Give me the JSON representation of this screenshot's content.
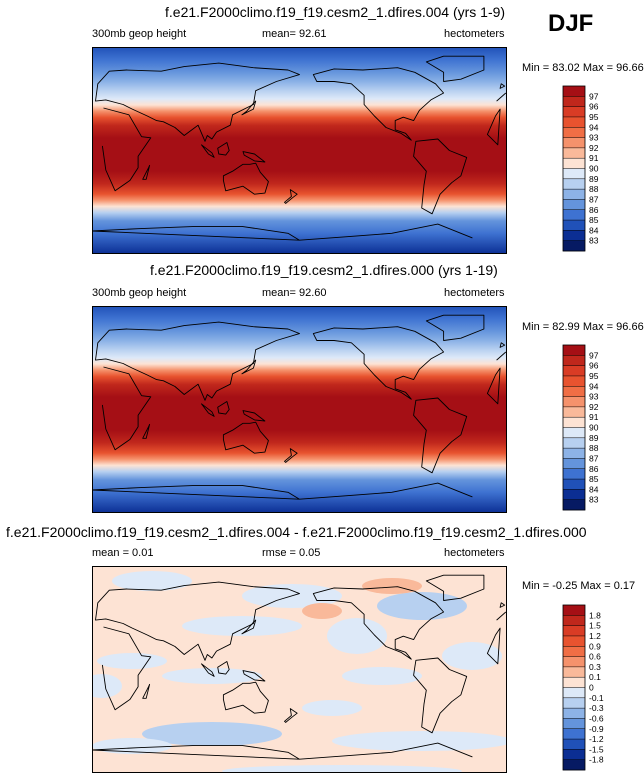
{
  "season": "DJF",
  "panels": [
    {
      "title": "f.e21.F2000climo.f19_f19.cesm2_1.dfires.004 (yrs 1-9)",
      "variable": "300mb geop height",
      "stat1": "mean=  92.61",
      "stat2": "",
      "units": "hectometers",
      "minmax": "Min =  83.02 Max =  96.66"
    },
    {
      "title": "f.e21.F2000climo.f19_f19.cesm2_1.dfires.000 (yrs 1-19)",
      "variable": "300mb geop height",
      "stat1": "mean=  92.60",
      "stat2": "",
      "units": "hectometers",
      "minmax": "Min =  82.99 Max =  96.66"
    },
    {
      "title": "f.e21.F2000climo.f19_f19.cesm2_1.dfires.004 - f.e21.F2000climo.f19_f19.cesm2_1.dfires.000",
      "variable": "mean =  0.01",
      "stat1": "rmse =  0.05",
      "stat2": "",
      "units": "hectometers",
      "minmax": "Min =  -0.25 Max =   0.17"
    }
  ],
  "chart_data": [
    {
      "type": "heatmap",
      "title": "f.e21.F2000climo.f19_f19.cesm2_1.dfires.004 (yrs 1-9)",
      "field": "300mb geop height",
      "units": "hectometers",
      "mean": 92.61,
      "min": 83.02,
      "max": 96.66,
      "colorbar_levels": [
        97,
        96,
        95,
        94,
        93,
        92,
        91,
        90,
        89,
        88,
        87,
        86,
        85,
        84,
        83
      ],
      "colorbar_colors": [
        "#a50f15",
        "#c0271c",
        "#d93c25",
        "#e8532f",
        "#f06e45",
        "#f5926c",
        "#f9b99a",
        "#fde3d4",
        "#dde9f8",
        "#b7d0f0",
        "#8db3e7",
        "#6494dc",
        "#3e72d1",
        "#2051b8",
        "#0b2e93",
        "#061a63"
      ]
    },
    {
      "type": "heatmap",
      "title": "f.e21.F2000climo.f19_f19.cesm2_1.dfires.000 (yrs 1-19)",
      "field": "300mb geop height",
      "units": "hectometers",
      "mean": 92.6,
      "min": 82.99,
      "max": 96.66,
      "colorbar_levels": [
        97,
        96,
        95,
        94,
        93,
        92,
        91,
        90,
        89,
        88,
        87,
        86,
        85,
        84,
        83
      ],
      "colorbar_colors": [
        "#a50f15",
        "#c0271c",
        "#d93c25",
        "#e8532f",
        "#f06e45",
        "#f5926c",
        "#f9b99a",
        "#fde3d4",
        "#dde9f8",
        "#b7d0f0",
        "#8db3e7",
        "#6494dc",
        "#3e72d1",
        "#2051b8",
        "#0b2e93",
        "#061a63"
      ]
    },
    {
      "type": "heatmap",
      "title": "f.e21.F2000climo.f19_f19.cesm2_1.dfires.004 - f.e21.F2000climo.f19_f19.cesm2_1.dfires.000",
      "units": "hectometers",
      "mean": 0.01,
      "rmse": 0.05,
      "min": -0.25,
      "max": 0.17,
      "colorbar_levels": [
        1.8,
        1.5,
        1.2,
        0.9,
        0.6,
        0.3,
        0.1,
        0,
        -0.1,
        -0.3,
        -0.6,
        -0.9,
        -1.2,
        -1.5,
        -1.8
      ],
      "colorbar_colors": [
        "#a50f15",
        "#c0271c",
        "#d93c25",
        "#e8532f",
        "#f06e45",
        "#f5926c",
        "#f9b99a",
        "#fde3d4",
        "#dde9f8",
        "#b7d0f0",
        "#8db3e7",
        "#6494dc",
        "#3e72d1",
        "#2051b8",
        "#0b2e93",
        "#061a63"
      ]
    }
  ]
}
